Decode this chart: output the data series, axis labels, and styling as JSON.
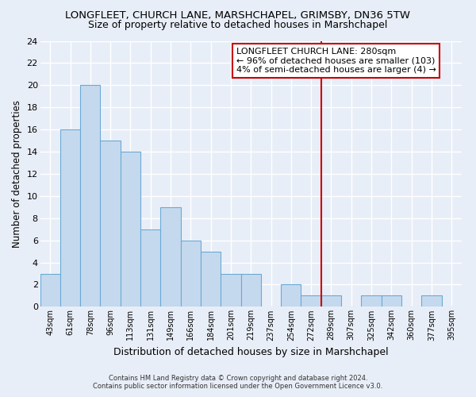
{
  "title": "LONGFLEET, CHURCH LANE, MARSHCHAPEL, GRIMSBY, DN36 5TW",
  "subtitle": "Size of property relative to detached houses in Marshchapel",
  "xlabel": "Distribution of detached houses by size in Marshchapel",
  "ylabel": "Number of detached properties",
  "bar_labels": [
    "43sqm",
    "61sqm",
    "78sqm",
    "96sqm",
    "113sqm",
    "131sqm",
    "149sqm",
    "166sqm",
    "184sqm",
    "201sqm",
    "219sqm",
    "237sqm",
    "254sqm",
    "272sqm",
    "289sqm",
    "307sqm",
    "325sqm",
    "342sqm",
    "360sqm",
    "377sqm",
    "395sqm"
  ],
  "bar_heights": [
    3,
    16,
    20,
    15,
    14,
    7,
    9,
    6,
    5,
    3,
    3,
    0,
    2,
    1,
    1,
    0,
    1,
    1,
    0,
    1,
    0
  ],
  "bar_color": "#c5d9ee",
  "bar_edge_color": "#6aaad4",
  "vline_x": 13.5,
  "vline_color": "#cc0000",
  "annotation_title": "LONGFLEET CHURCH LANE: 280sqm",
  "annotation_line1": "← 96% of detached houses are smaller (103)",
  "annotation_line2": "4% of semi-detached houses are larger (4) →",
  "annotation_box_color": "#ffffff",
  "annotation_box_edge_color": "#cc0000",
  "ylim": [
    0,
    24
  ],
  "yticks": [
    0,
    2,
    4,
    6,
    8,
    10,
    12,
    14,
    16,
    18,
    20,
    22,
    24
  ],
  "footnote1": "Contains HM Land Registry data © Crown copyright and database right 2024.",
  "footnote2": "Contains public sector information licensed under the Open Government Licence v3.0.",
  "bg_color": "#e8eef7",
  "grid_color": "#ffffff",
  "title_fontsize": 9.5,
  "subtitle_fontsize": 9.0,
  "annot_fontsize": 8.0,
  "xlabel_fontsize": 9.0,
  "ylabel_fontsize": 8.5
}
